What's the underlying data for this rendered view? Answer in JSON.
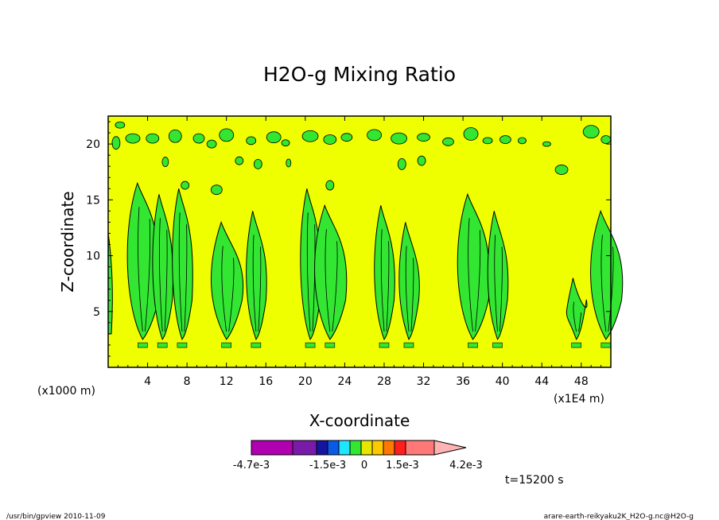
{
  "chart_data": {
    "type": "heatmap",
    "title": "H2O-g Mixing Ratio",
    "xlabel": "X-coordinate",
    "ylabel": "Z-coordinate",
    "x_unit_left": "(x1000 m)",
    "x_unit_right": "(x1E4 m)",
    "xticks": [
      "4",
      "8",
      "12",
      "16",
      "20",
      "24",
      "28",
      "32",
      "36",
      "40",
      "44",
      "48"
    ],
    "yticks": [
      "5",
      "10",
      "15",
      "20"
    ],
    "xlim": [
      0,
      51
    ],
    "ylim": [
      0,
      22.5
    ],
    "time_label": "t=15200 s",
    "background_level_color": "#f0ff00",
    "colorbar": {
      "colors": [
        "#b000b0",
        "#7a1aa8",
        "#1414a0",
        "#0a5ae6",
        "#1ee6ff",
        "#32e632",
        "#e6e600",
        "#ffc800",
        "#ff7800",
        "#ff1e1e",
        "#ff7878",
        "#ffb4b4"
      ],
      "tick_labels": [
        "-4.7e-3",
        "-1.5e-3",
        "0",
        "1.5e-3",
        "4.2e-3"
      ]
    },
    "moist_plumes_x": [
      3.5,
      5.5,
      7.5,
      12,
      15,
      20.5,
      22.5,
      28,
      30.5,
      37,
      39.5,
      47.5,
      50.5
    ],
    "footer_left": "/usr/bin/gpview   2010-11-09",
    "footer_right": "arare-earth-reikyaku2K_H2O-g.nc@H2O-g"
  }
}
